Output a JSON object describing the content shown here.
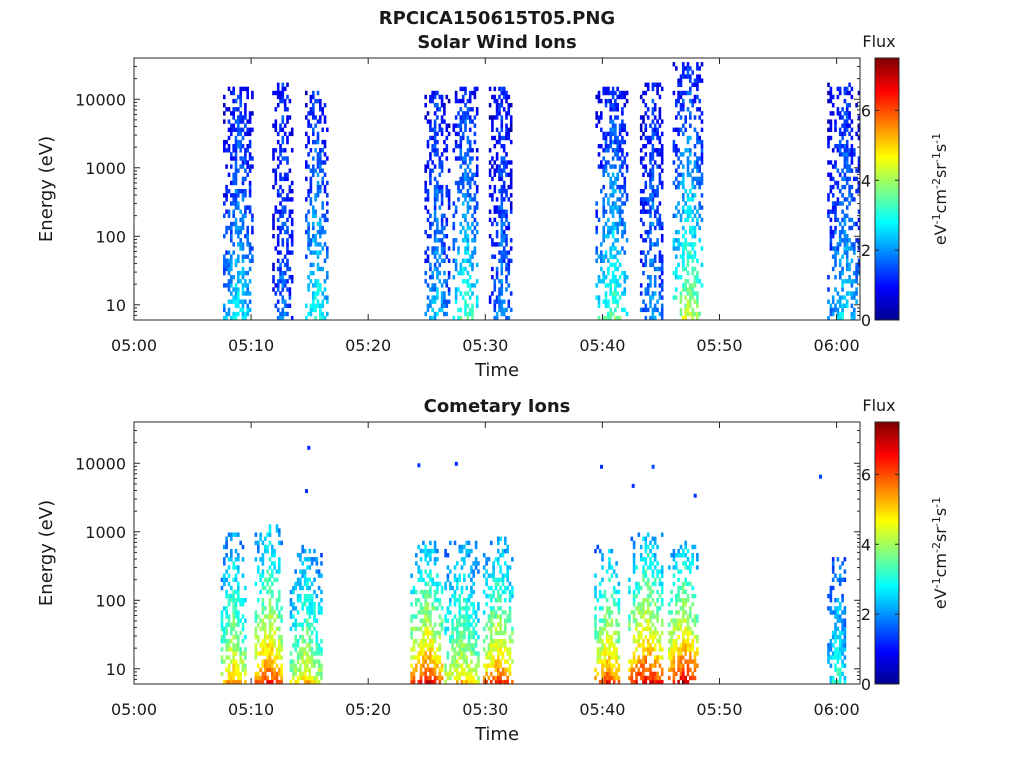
{
  "figure": {
    "title": "RPCICA150615T05.PNG"
  },
  "colormap": {
    "stops": [
      "#00008f",
      "#0000ff",
      "#0080ff",
      "#00ffff",
      "#80ff80",
      "#ffff00",
      "#ff8000",
      "#ff0000",
      "#800000"
    ],
    "range": [
      0,
      7.5
    ]
  },
  "chart_data": [
    {
      "type": "heatmap",
      "title": "Solar Wind Ions",
      "xlabel": "Time",
      "ylabel": "Energy (eV)",
      "x_tick_labels": [
        "05:00",
        "05:10",
        "05:20",
        "05:30",
        "05:40",
        "05:50",
        "06:00"
      ],
      "x_ticks_min": [
        0,
        10,
        20,
        30,
        40,
        50,
        60
      ],
      "xlim_min": [
        0,
        62
      ],
      "y_scale": "log",
      "y_tick_labels": [
        "10",
        "100",
        "1000",
        "10000"
      ],
      "y_ticks": [
        10,
        100,
        1000,
        10000
      ],
      "ylim": [
        6,
        40000
      ],
      "colorbar": {
        "title": "Flux",
        "label": "eV-1cm-2sr-1s-1",
        "ticks": [
          "0",
          "2",
          "4",
          "6"
        ],
        "tick_values": [
          0,
          2,
          4,
          6
        ],
        "range": [
          0,
          7.5
        ]
      },
      "bursts": [
        {
          "start_min": 7.6,
          "end_min": 10.1,
          "e_top": 14000,
          "flux_low": 3.0,
          "flux_high": 1.3
        },
        {
          "start_min": 11.8,
          "end_min": 13.5,
          "e_top": 16000,
          "flux_low": 2.0,
          "flux_high": 1.3
        },
        {
          "start_min": 14.6,
          "end_min": 16.4,
          "e_top": 13000,
          "flux_low": 3.4,
          "flux_high": 1.4
        },
        {
          "start_min": 24.8,
          "end_min": 26.8,
          "e_top": 12000,
          "flux_low": 2.6,
          "flux_high": 1.3
        },
        {
          "start_min": 27.2,
          "end_min": 29.3,
          "e_top": 15000,
          "flux_low": 3.6,
          "flux_high": 1.4
        },
        {
          "start_min": 30.3,
          "end_min": 32.3,
          "e_top": 14000,
          "flux_low": 2.2,
          "flux_high": 1.2
        },
        {
          "start_min": 39.4,
          "end_min": 42.2,
          "e_top": 14000,
          "flux_low": 3.8,
          "flux_high": 1.3
        },
        {
          "start_min": 43.2,
          "end_min": 45.2,
          "e_top": 17000,
          "flux_low": 2.4,
          "flux_high": 1.3
        },
        {
          "start_min": 46.0,
          "end_min": 48.6,
          "e_top": 33000,
          "flux_low": 4.6,
          "flux_high": 1.3
        },
        {
          "start_min": 59.2,
          "end_min": 62.0,
          "e_top": 16000,
          "flux_low": 2.8,
          "flux_high": 1.3
        }
      ]
    },
    {
      "type": "heatmap",
      "title": "Cometary Ions",
      "xlabel": "Time",
      "ylabel": "Energy (eV)",
      "x_tick_labels": [
        "05:00",
        "05:10",
        "05:20",
        "05:30",
        "05:40",
        "05:50",
        "06:00"
      ],
      "x_ticks_min": [
        0,
        10,
        20,
        30,
        40,
        50,
        60
      ],
      "xlim_min": [
        0,
        62
      ],
      "y_scale": "log",
      "y_tick_labels": [
        "10",
        "100",
        "1000",
        "10000"
      ],
      "y_ticks": [
        10,
        100,
        1000,
        10000
      ],
      "ylim": [
        6,
        40000
      ],
      "colorbar": {
        "title": "Flux",
        "label": "eV-1cm-2sr-1s-1",
        "ticks": [
          "0",
          "2",
          "4",
          "6"
        ],
        "tick_values": [
          0,
          2,
          4,
          6
        ],
        "range": [
          0,
          7.5
        ]
      },
      "bursts": [
        {
          "start_min": 7.4,
          "end_min": 9.4,
          "e_top": 900,
          "flux_low": 5.6,
          "flux_high": 2.2
        },
        {
          "start_min": 10.3,
          "end_min": 12.6,
          "e_top": 1200,
          "flux_low": 6.6,
          "flux_high": 2.4
        },
        {
          "start_min": 13.3,
          "end_min": 16.0,
          "e_top": 600,
          "flux_low": 5.2,
          "flux_high": 2.2
        },
        {
          "start_min": 23.6,
          "end_min": 26.3,
          "e_top": 700,
          "flux_low": 6.8,
          "flux_high": 2.4
        },
        {
          "start_min": 26.5,
          "end_min": 29.4,
          "e_top": 700,
          "flux_low": 5.2,
          "flux_high": 2.3
        },
        {
          "start_min": 29.8,
          "end_min": 32.3,
          "e_top": 800,
          "flux_low": 6.4,
          "flux_high": 2.3
        },
        {
          "start_min": 39.3,
          "end_min": 41.5,
          "e_top": 600,
          "flux_low": 6.4,
          "flux_high": 2.4
        },
        {
          "start_min": 42.2,
          "end_min": 45.2,
          "e_top": 900,
          "flux_low": 7.0,
          "flux_high": 2.5
        },
        {
          "start_min": 45.6,
          "end_min": 48.2,
          "e_top": 700,
          "flux_low": 7.2,
          "flux_high": 2.5
        },
        {
          "start_min": 59.2,
          "end_min": 60.8,
          "e_top": 400,
          "flux_low": 3.4,
          "flux_high": 2.0
        }
      ],
      "isolated_points": [
        {
          "t_min": 14.8,
          "energy": 18000,
          "flux": 1.2
        },
        {
          "t_min": 14.6,
          "energy": 4200,
          "flux": 1.3
        },
        {
          "t_min": 24.2,
          "energy": 10000,
          "flux": 1.3
        },
        {
          "t_min": 27.4,
          "energy": 10500,
          "flux": 1.2
        },
        {
          "t_min": 39.8,
          "energy": 9500,
          "flux": 1.3
        },
        {
          "t_min": 42.5,
          "energy": 5000,
          "flux": 1.3
        },
        {
          "t_min": 44.2,
          "energy": 9500,
          "flux": 1.5
        },
        {
          "t_min": 47.8,
          "energy": 3600,
          "flux": 1.3
        },
        {
          "t_min": 58.5,
          "energy": 6800,
          "flux": 1.4
        }
      ]
    }
  ]
}
